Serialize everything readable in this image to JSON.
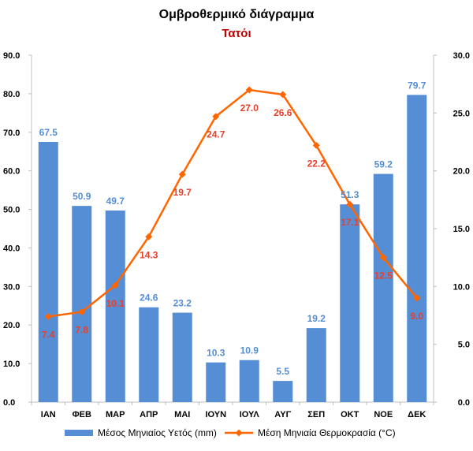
{
  "chart_data": {
    "type": "bar",
    "title": "Ομβροθερμικό διάγραμμα",
    "subtitle": "Τατόι",
    "categories": [
      "ΙΑΝ",
      "ΦΕΒ",
      "ΜΑΡ",
      "ΑΠΡ",
      "ΜΑΙ",
      "ΙΟΥΝ",
      "ΙΟΥΛ",
      "ΑΥΓ",
      "ΣΕΠ",
      "ΟΚΤ",
      "ΝΟΕ",
      "ΔΕΚ"
    ],
    "series": [
      {
        "name": "Μέσος Μηνιαίος Υετός (mm)",
        "type": "bar",
        "axis": "left",
        "color": "#558ed5",
        "label_color": "#558ed5",
        "values": [
          67.5,
          50.9,
          49.7,
          24.6,
          23.2,
          10.3,
          10.9,
          5.5,
          19.2,
          51.3,
          59.2,
          79.7
        ]
      },
      {
        "name": "Μέση Μηνιαία Θερμοκρασία (°C)",
        "type": "line",
        "axis": "right",
        "color": "#ff6600",
        "label_color": "#e8402a",
        "marker": "diamond",
        "values": [
          7.4,
          7.8,
          10.1,
          14.3,
          19.7,
          24.7,
          27.0,
          26.6,
          22.2,
          17.1,
          12.5,
          9.0
        ]
      }
    ],
    "y_left": {
      "range": [
        0,
        90
      ],
      "ticks": [
        "0.0",
        "10.0",
        "20.0",
        "30.0",
        "40.0",
        "50.0",
        "60.0",
        "70.0",
        "80.0",
        "90.0"
      ]
    },
    "y_right": {
      "range": [
        0,
        30
      ],
      "ticks": [
        "0.0",
        "5.0",
        "10.0",
        "15.0",
        "20.0",
        "25.0",
        "30.0"
      ]
    },
    "grid": false,
    "legend_position": "bottom"
  }
}
